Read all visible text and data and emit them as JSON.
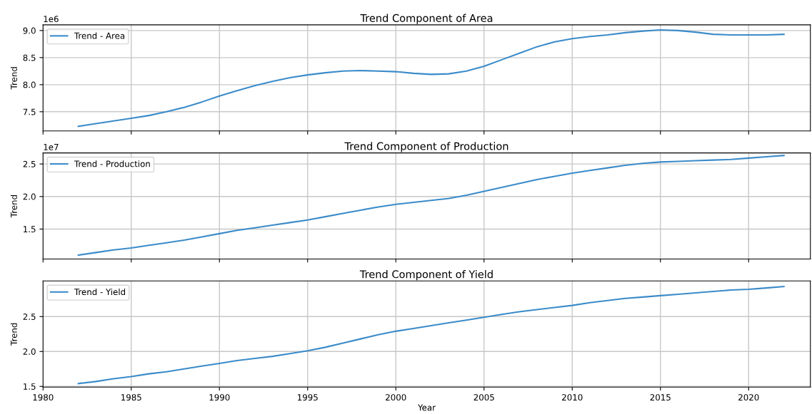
{
  "chart_data": [
    {
      "type": "line",
      "title": "Trend Component of Area",
      "ylabel": "Trend",
      "annotations": [
        "1e6"
      ],
      "grid": true,
      "legend": "top left",
      "tick_labels": "y",
      "x": [
        1982,
        1983,
        1984,
        1985,
        1986,
        1987,
        1988,
        1989,
        1990,
        1991,
        1992,
        1993,
        1994,
        1995,
        1996,
        1997,
        1998,
        1999,
        2000,
        2001,
        2002,
        2003,
        2004,
        2005,
        2006,
        2007,
        2008,
        2009,
        2010,
        2011,
        2012,
        2013,
        2014,
        2015,
        2016,
        2017,
        2018,
        2019,
        2020,
        2021,
        2022
      ],
      "series": [
        {
          "name": "Trend - Area",
          "color": "#3b8bc9",
          "values": [
            7.23,
            7.28,
            7.33,
            7.38,
            7.43,
            7.5,
            7.58,
            7.68,
            7.79,
            7.89,
            7.98,
            8.06,
            8.13,
            8.18,
            8.22,
            8.25,
            8.26,
            8.25,
            8.24,
            8.21,
            8.19,
            8.2,
            8.25,
            8.34,
            8.46,
            8.58,
            8.7,
            8.79,
            8.85,
            8.89,
            8.92,
            8.96,
            8.99,
            9.01,
            9.0,
            8.97,
            8.93,
            8.92,
            8.92,
            8.92,
            8.93
          ]
        }
      ],
      "xlim": [
        1980,
        2023.5
      ],
      "xticks": [
        1980,
        1985,
        1990,
        1995,
        2000,
        2005,
        2010,
        2015,
        2020
      ],
      "ylim": [
        7.145,
        9.105
      ],
      "yticks": [
        {
          "value": 7.5,
          "label": "7.5"
        },
        {
          "value": 8.0,
          "label": "8.0"
        },
        {
          "value": 8.5,
          "label": "8.5"
        },
        {
          "value": 9.0,
          "label": "9.0"
        }
      ]
    },
    {
      "type": "line",
      "title": "Trend Component of Production",
      "ylabel": "Trend",
      "annotations": [
        "1e7"
      ],
      "grid": true,
      "legend": "top left",
      "tick_labels": "y",
      "x": [
        1982,
        1983,
        1984,
        1985,
        1986,
        1987,
        1988,
        1989,
        1990,
        1991,
        1992,
        1993,
        1994,
        1995,
        1996,
        1997,
        1998,
        1999,
        2000,
        2001,
        2002,
        2003,
        2004,
        2005,
        2006,
        2007,
        2008,
        2009,
        2010,
        2011,
        2012,
        2013,
        2014,
        2015,
        2016,
        2017,
        2018,
        2019,
        2020,
        2021,
        2022
      ],
      "series": [
        {
          "name": "Trend - Production",
          "color": "#3b8bc9",
          "values": [
            1.1,
            1.14,
            1.18,
            1.21,
            1.25,
            1.29,
            1.33,
            1.38,
            1.43,
            1.48,
            1.52,
            1.56,
            1.6,
            1.64,
            1.69,
            1.74,
            1.79,
            1.84,
            1.88,
            1.91,
            1.94,
            1.97,
            2.02,
            2.08,
            2.14,
            2.2,
            2.26,
            2.31,
            2.36,
            2.4,
            2.44,
            2.48,
            2.51,
            2.53,
            2.54,
            2.55,
            2.56,
            2.57,
            2.59,
            2.61,
            2.63
          ]
        }
      ],
      "xlim": [
        1980,
        2023.5
      ],
      "xticks": [
        1980,
        1985,
        1990,
        1995,
        2000,
        2005,
        2010,
        2015,
        2020
      ],
      "ylim": [
        1.04,
        2.67
      ],
      "yticks": [
        {
          "value": 1.5,
          "label": "1.5"
        },
        {
          "value": 2.0,
          "label": "2.0"
        },
        {
          "value": 2.5,
          "label": "2.5"
        }
      ]
    },
    {
      "type": "line",
      "title": "Trend Component of Yield",
      "xlabel": "Year",
      "ylabel": "Trend",
      "grid": true,
      "legend": "top left",
      "x": [
        1982,
        1983,
        1984,
        1985,
        1986,
        1987,
        1988,
        1989,
        1990,
        1991,
        1992,
        1993,
        1994,
        1995,
        1996,
        1997,
        1998,
        1999,
        2000,
        2001,
        2002,
        2003,
        2004,
        2005,
        2006,
        2007,
        2008,
        2009,
        2010,
        2011,
        2012,
        2013,
        2014,
        2015,
        2016,
        2017,
        2018,
        2019,
        2020,
        2021,
        2022
      ],
      "series": [
        {
          "name": "Trend - Yield",
          "color": "#3b8bc9",
          "values": [
            1.54,
            1.57,
            1.61,
            1.64,
            1.68,
            1.71,
            1.75,
            1.79,
            1.83,
            1.87,
            1.9,
            1.93,
            1.97,
            2.01,
            2.06,
            2.12,
            2.18,
            2.24,
            2.29,
            2.33,
            2.37,
            2.41,
            2.45,
            2.49,
            2.53,
            2.57,
            2.6,
            2.63,
            2.66,
            2.7,
            2.73,
            2.76,
            2.78,
            2.8,
            2.82,
            2.84,
            2.86,
            2.88,
            2.89,
            2.91,
            2.93
          ]
        }
      ],
      "xlim": [
        1980,
        2023.5
      ],
      "xticks": [
        1980,
        1985,
        1990,
        1995,
        2000,
        2005,
        2010,
        2015,
        2020
      ],
      "ylim": [
        1.49,
        3.01
      ],
      "yticks": [
        {
          "value": 1.5,
          "label": "1.5"
        },
        {
          "value": 2.0,
          "label": "2.0"
        },
        {
          "value": 2.5,
          "label": "2.5"
        }
      ]
    }
  ]
}
